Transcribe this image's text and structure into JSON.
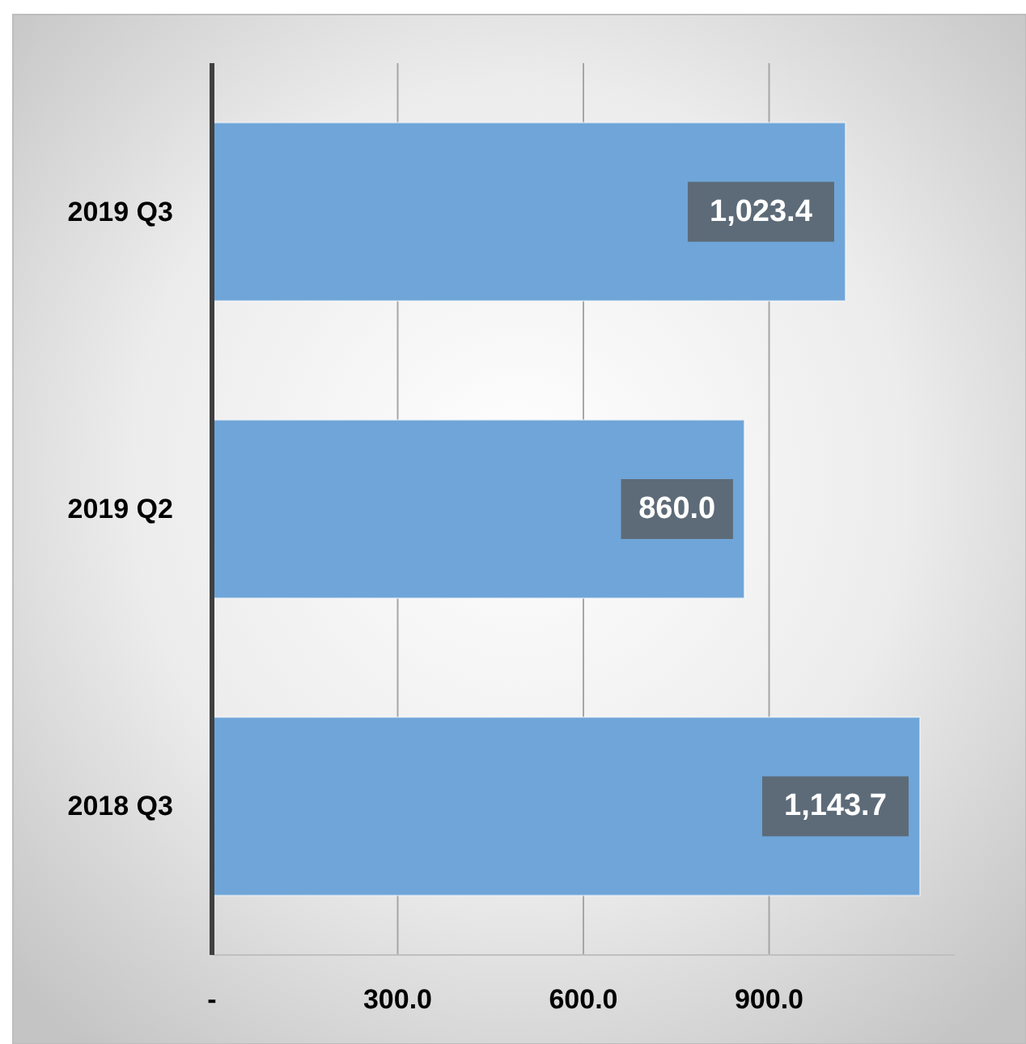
{
  "chart_data": {
    "type": "bar",
    "orientation": "horizontal",
    "categories": [
      "2019 Q3",
      "2019 Q2",
      "2018 Q3"
    ],
    "values": [
      1023.4,
      860.0,
      1143.7
    ],
    "color": "#6fa5d8",
    "value_labels": [
      "1,023.4",
      "860.0",
      "1,143.7"
    ],
    "xlim": [
      0,
      1200
    ],
    "xticks": [
      {
        "value": 0,
        "label": "-"
      },
      {
        "value": 300,
        "label": "300.0"
      },
      {
        "value": 600,
        "label": "600.0"
      },
      {
        "value": 900,
        "label": "900.0"
      }
    ],
    "grid": "x"
  }
}
